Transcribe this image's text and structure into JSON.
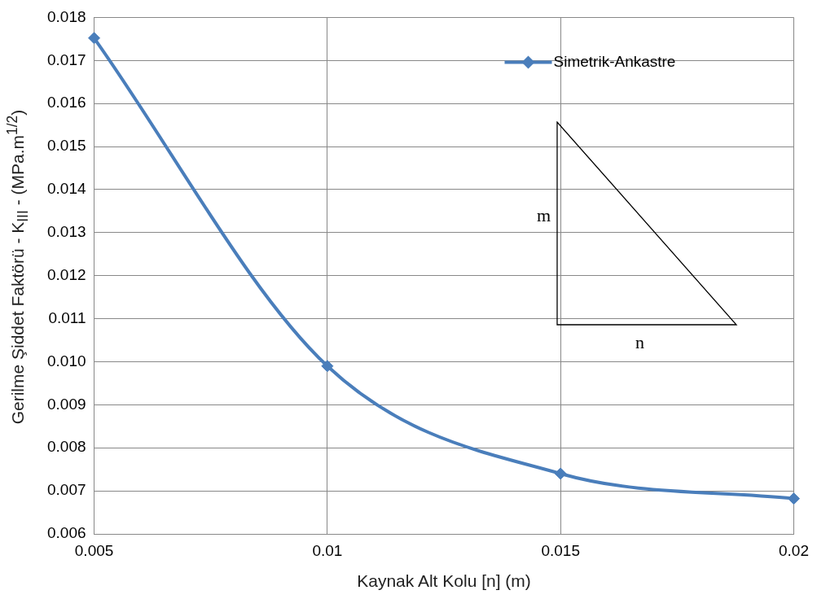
{
  "chart_data": {
    "type": "line",
    "xlabel": "Kaynak Alt Kolu [n] (m)",
    "ylabel": "Gerilme Şiddet Faktörü - K$_{III}$ - (MPa.m$^{1/2}$)",
    "x": [
      0.005,
      0.01,
      0.015,
      0.02
    ],
    "series": [
      {
        "name": "Simetrik-Ankastre",
        "color": "#4a7ebb",
        "values": [
          0.01752,
          0.0099,
          0.0074,
          0.00682
        ]
      }
    ],
    "xlim": [
      0.005,
      0.02
    ],
    "xticks": [
      0.005,
      0.01,
      0.015,
      0.02
    ],
    "ylim": [
      0.006,
      0.018
    ],
    "yticks": [
      0.006,
      0.007,
      0.008,
      0.009,
      {
        "value": 0.01,
        "label": "0.010"
      },
      0.011,
      0.012,
      0.013,
      0.014,
      0.015,
      0.016,
      0.017,
      0.018
    ],
    "grid": true,
    "legend": "top right",
    "marker": "diamond",
    "line_style": "solid",
    "annotations": [
      "m",
      "n"
    ]
  }
}
